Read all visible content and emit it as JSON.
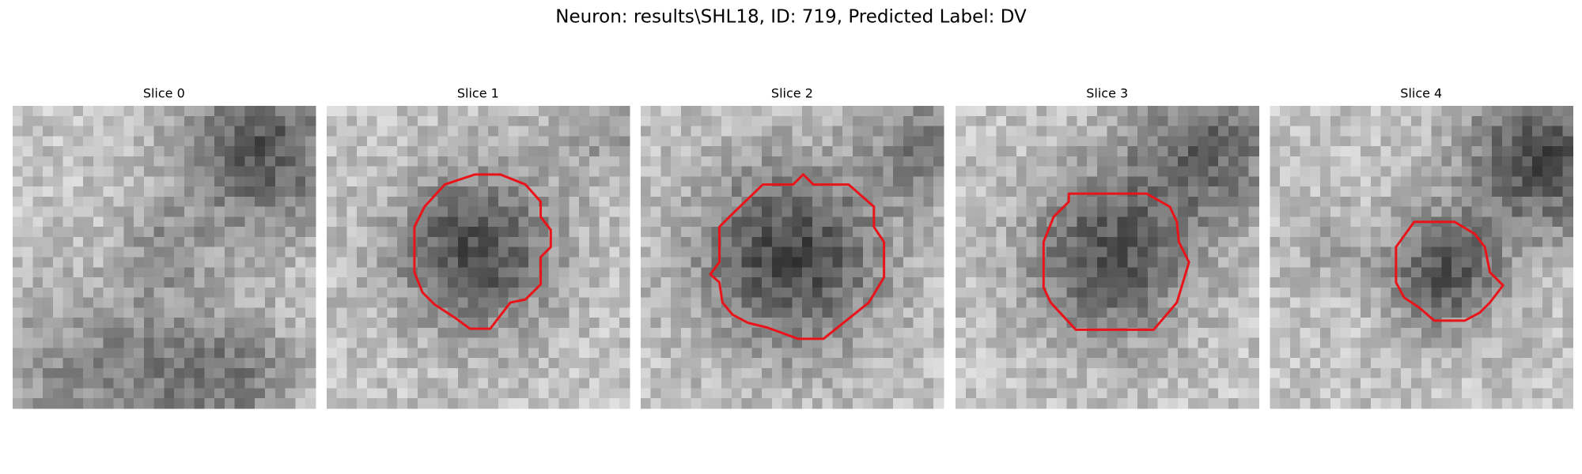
{
  "title": "Neuron: results\\SHL18, ID: 719, Predicted Label: DV",
  "panels": [
    {
      "title": "Slice 0"
    },
    {
      "title": "Slice 1"
    },
    {
      "title": "Slice 2"
    },
    {
      "title": "Slice 3"
    },
    {
      "title": "Slice 4"
    }
  ]
}
